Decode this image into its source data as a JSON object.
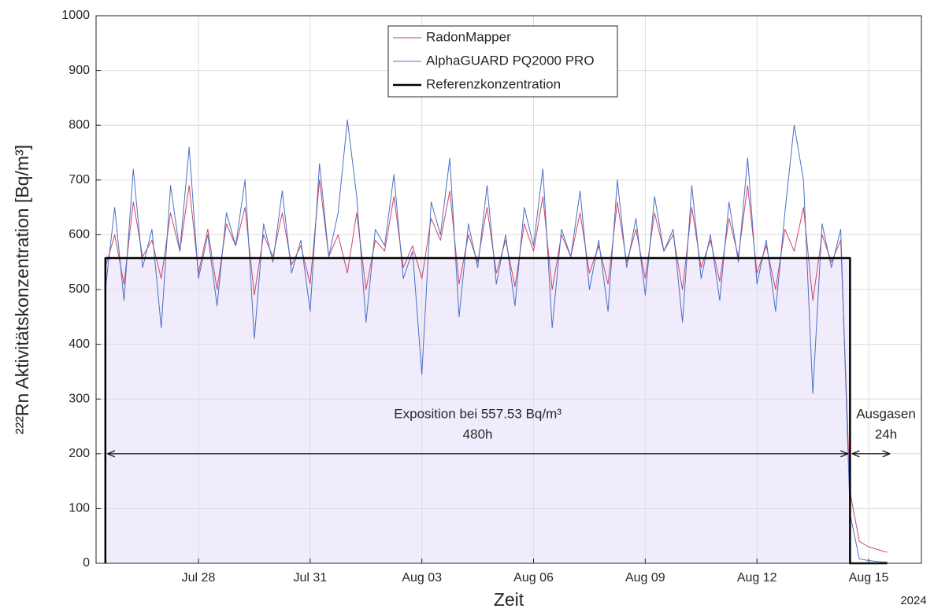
{
  "chart_data": {
    "type": "line",
    "ylabel": "²²²Rn Aktivitätskonzentration [Bq/m³]",
    "xlabel": "Zeit",
    "x_year_label": "2024",
    "annotations": {
      "exposure_label": "Exposition bei 557.53 Bq/m³",
      "exposure_duration": "480h",
      "degas_label": "Ausgasen",
      "degas_duration": "24h"
    },
    "x": [
      "2024-07-25T12:00",
      "2024-07-25T18:00",
      "2024-07-26T00:00",
      "2024-07-26T06:00",
      "2024-07-26T12:00",
      "2024-07-26T18:00",
      "2024-07-27T00:00",
      "2024-07-27T06:00",
      "2024-07-27T12:00",
      "2024-07-27T18:00",
      "2024-07-28T00:00",
      "2024-07-28T06:00",
      "2024-07-28T12:00",
      "2024-07-28T18:00",
      "2024-07-29T00:00",
      "2024-07-29T06:00",
      "2024-07-29T12:00",
      "2024-07-29T18:00",
      "2024-07-30T00:00",
      "2024-07-30T06:00",
      "2024-07-30T12:00",
      "2024-07-30T18:00",
      "2024-07-31T00:00",
      "2024-07-31T06:00",
      "2024-07-31T12:00",
      "2024-07-31T18:00",
      "2024-08-01T00:00",
      "2024-08-01T06:00",
      "2024-08-01T12:00",
      "2024-08-01T18:00",
      "2024-08-02T00:00",
      "2024-08-02T06:00",
      "2024-08-02T12:00",
      "2024-08-02T18:00",
      "2024-08-03T00:00",
      "2024-08-03T06:00",
      "2024-08-03T12:00",
      "2024-08-03T18:00",
      "2024-08-04T00:00",
      "2024-08-04T06:00",
      "2024-08-04T12:00",
      "2024-08-04T18:00",
      "2024-08-05T00:00",
      "2024-08-05T06:00",
      "2024-08-05T12:00",
      "2024-08-05T18:00",
      "2024-08-06T00:00",
      "2024-08-06T06:00",
      "2024-08-06T12:00",
      "2024-08-06T18:00",
      "2024-08-07T00:00",
      "2024-08-07T06:00",
      "2024-08-07T12:00",
      "2024-08-07T18:00",
      "2024-08-08T00:00",
      "2024-08-08T06:00",
      "2024-08-08T12:00",
      "2024-08-08T18:00",
      "2024-08-09T00:00",
      "2024-08-09T06:00",
      "2024-08-09T12:00",
      "2024-08-09T18:00",
      "2024-08-10T00:00",
      "2024-08-10T06:00",
      "2024-08-10T12:00",
      "2024-08-10T18:00",
      "2024-08-11T00:00",
      "2024-08-11T06:00",
      "2024-08-11T12:00",
      "2024-08-11T18:00",
      "2024-08-12T00:00",
      "2024-08-12T06:00",
      "2024-08-12T12:00",
      "2024-08-12T18:00",
      "2024-08-13T00:00",
      "2024-08-13T06:00",
      "2024-08-13T12:00",
      "2024-08-13T18:00",
      "2024-08-14T00:00",
      "2024-08-14T06:00",
      "2024-08-14T12:00",
      "2024-08-14T18:00",
      "2024-08-15T00:00",
      "2024-08-15T06:00",
      "2024-08-15T12:00"
    ],
    "series": [
      {
        "name": "RadonMapper",
        "color": "#c9476b",
        "width": 1,
        "values": [
          540,
          600,
          510,
          660,
          560,
          590,
          520,
          640,
          570,
          690,
          530,
          610,
          500,
          620,
          580,
          650,
          490,
          600,
          560,
          640,
          545,
          580,
          510,
          700,
          560,
          600,
          530,
          640,
          500,
          590,
          570,
          670,
          540,
          580,
          520,
          630,
          590,
          680,
          510,
          600,
          550,
          650,
          530,
          590,
          505,
          620,
          570,
          670,
          500,
          600,
          560,
          640,
          530,
          580,
          510,
          660,
          550,
          610,
          520,
          640,
          570,
          600,
          500,
          650,
          540,
          590,
          515,
          630,
          560,
          690,
          530,
          580,
          500,
          610,
          570,
          650,
          480,
          600,
          550,
          590,
          130,
          40,
          30,
          25,
          20
        ]
      },
      {
        "name": "AlphaGUARD PQ2000 PRO",
        "color": "#4a70c4",
        "width": 1,
        "values": [
          500,
          650,
          480,
          720,
          540,
          610,
          430,
          690,
          570,
          760,
          520,
          600,
          470,
          640,
          580,
          700,
          410,
          620,
          550,
          680,
          530,
          590,
          460,
          730,
          560,
          640,
          810,
          670,
          440,
          610,
          580,
          710,
          520,
          570,
          345,
          660,
          600,
          740,
          450,
          620,
          540,
          690,
          510,
          600,
          470,
          650,
          580,
          720,
          430,
          610,
          560,
          680,
          500,
          590,
          460,
          700,
          540,
          630,
          490,
          670,
          570,
          610,
          440,
          690,
          520,
          600,
          480,
          660,
          550,
          740,
          510,
          590,
          460,
          640,
          800,
          700,
          310,
          620,
          540,
          610,
          90,
          8,
          5,
          3,
          2
        ]
      },
      {
        "name": "Referenzkonzentration",
        "color": "#000000",
        "width": 2.5,
        "x": [
          "2024-07-25T12:00",
          "2024-07-25T12:00",
          "2024-08-14T12:00",
          "2024-08-14T12:00",
          "2024-08-15T12:00"
        ],
        "values": [
          0,
          557.53,
          557.53,
          0,
          0
        ]
      }
    ],
    "xlim": [
      "2024-07-25T06:00",
      "2024-08-16T10:00"
    ],
    "xticks": [
      {
        "value": "2024-07-28T00:00",
        "label": "Jul 28"
      },
      {
        "value": "2024-07-31T00:00",
        "label": "Jul 31"
      },
      {
        "value": "2024-08-03T00:00",
        "label": "Aug 03"
      },
      {
        "value": "2024-08-06T00:00",
        "label": "Aug 06"
      },
      {
        "value": "2024-08-09T00:00",
        "label": "Aug 09"
      },
      {
        "value": "2024-08-12T00:00",
        "label": "Aug 12"
      },
      {
        "value": "2024-08-15T00:00",
        "label": "Aug 15"
      }
    ],
    "ylim": [
      0,
      1000
    ],
    "yticks": [
      0,
      100,
      200,
      300,
      400,
      500,
      600,
      700,
      800,
      900,
      1000
    ],
    "grid": true,
    "legend": "top",
    "fill_color": "#f1ecfb"
  }
}
